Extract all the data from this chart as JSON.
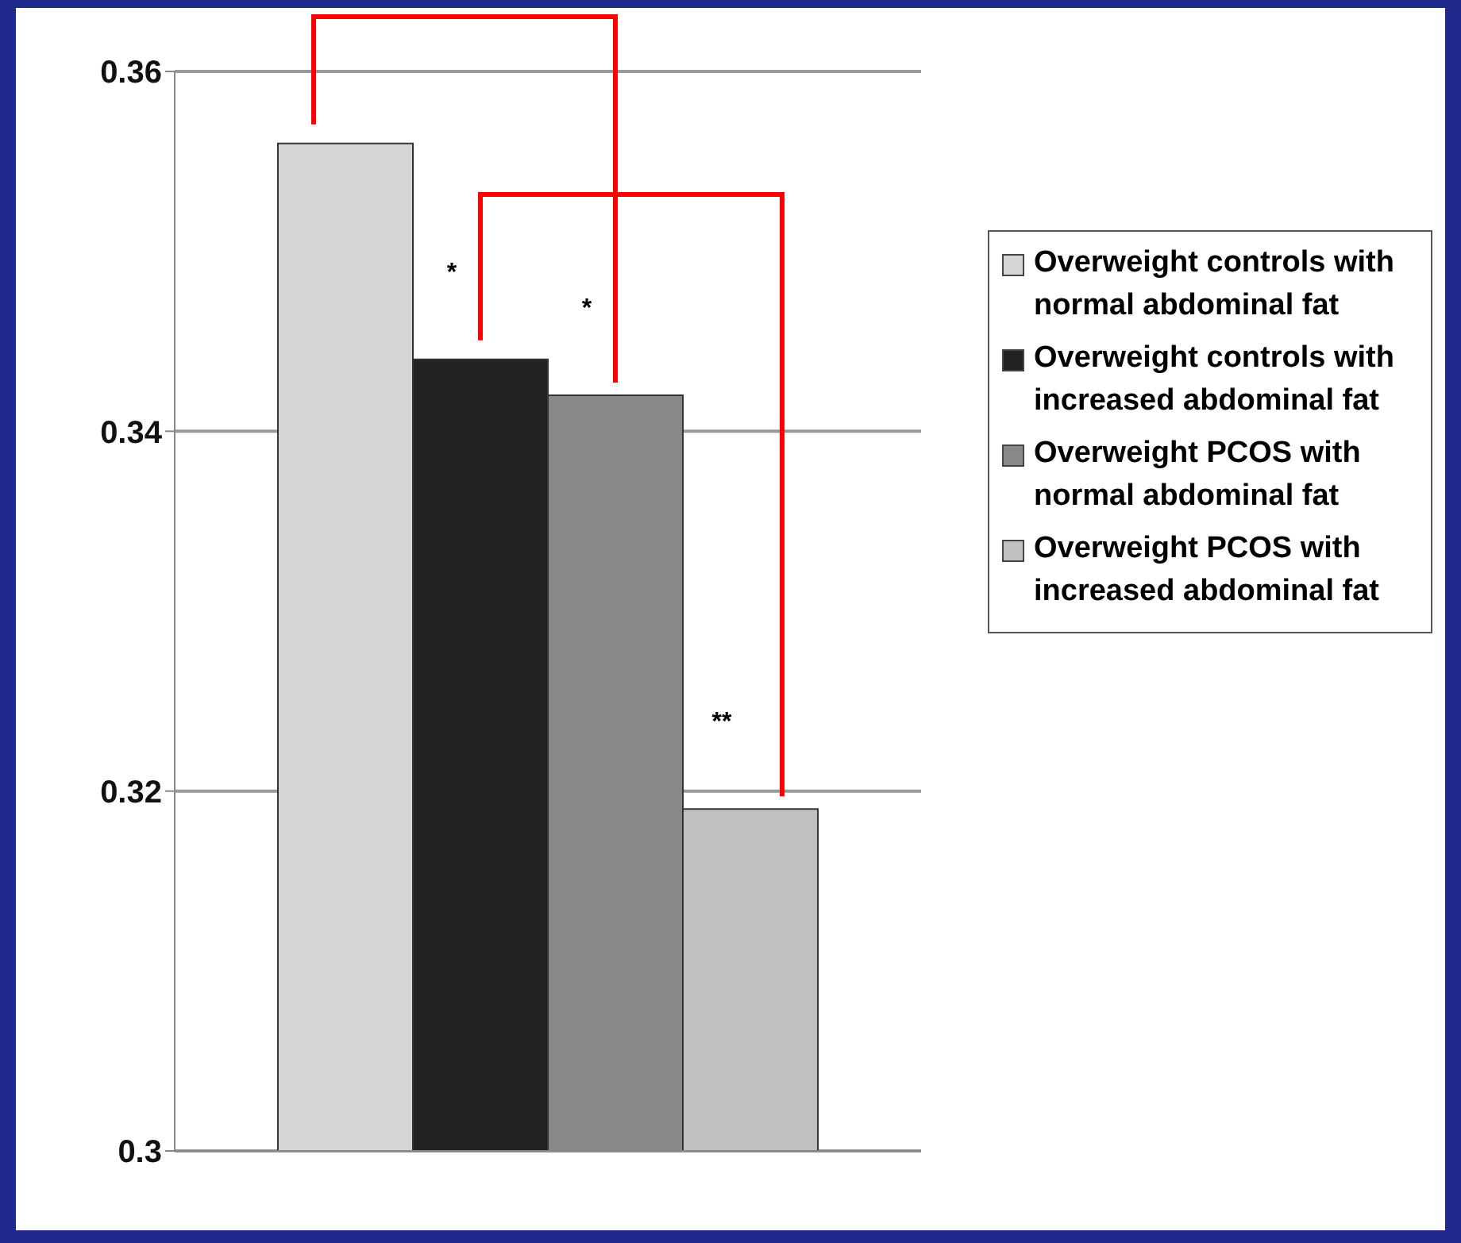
{
  "chart_data": {
    "type": "bar",
    "categories": [
      null
    ],
    "series": [
      {
        "name": "Overweight controls with normal abdominal fat",
        "color": "#d6d6d6",
        "values": [
          0.356
        ]
      },
      {
        "name": "Overweight controls with increased abdominal fat",
        "color": "#222222",
        "values": [
          0.344
        ]
      },
      {
        "name": "Overweight PCOS with normal abdominal fat",
        "color": "#888888",
        "values": [
          0.342
        ]
      },
      {
        "name": "Overweight PCOS with increased abdominal fat",
        "color": "#c0c0c0",
        "values": [
          0.319
        ]
      }
    ],
    "ylim": [
      0.3,
      0.36
    ],
    "yticks": [
      0.3,
      0.32,
      0.34,
      0.36
    ],
    "grid": "y",
    "legend": "right",
    "annotations": [
      "*",
      "*",
      "**"
    ]
  }
}
